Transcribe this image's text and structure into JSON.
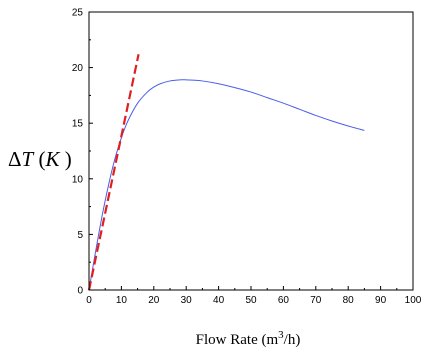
{
  "chart_data": {
    "type": "line",
    "title": "",
    "xlabel": {
      "prefix": "Flow Rate (m",
      "sup": "3",
      "suffix": "/h)"
    },
    "ylabel": {
      "delta": "Δ",
      "var": "T",
      "open": " (",
      "unit": "K",
      "close": " )"
    },
    "xlim": [
      0,
      100
    ],
    "ylim": [
      0,
      25
    ],
    "xticks": [
      0,
      10,
      20,
      30,
      40,
      50,
      60,
      70,
      80,
      90,
      100
    ],
    "yticks": [
      0,
      5,
      10,
      15,
      20,
      25
    ],
    "grid": false,
    "series": [
      {
        "style": "solid",
        "color": "#4a5ee8",
        "x": [
          0,
          2,
          4,
          6,
          8,
          10,
          12,
          15,
          18,
          20,
          22,
          25,
          28,
          30,
          32,
          35,
          40,
          45,
          50,
          55,
          60,
          65,
          70,
          75,
          80,
          85
        ],
        "y": [
          0,
          3.4,
          6.6,
          9.4,
          11.8,
          13.7,
          15.2,
          16.8,
          17.8,
          18.25,
          18.55,
          18.8,
          18.9,
          18.9,
          18.87,
          18.8,
          18.55,
          18.2,
          17.8,
          17.3,
          16.8,
          16.25,
          15.7,
          15.2,
          14.75,
          14.35
        ]
      },
      {
        "style": "dashed",
        "color": "#e02020",
        "x": [
          0,
          15.3
        ],
        "y": [
          0,
          21.2
        ]
      }
    ],
    "colors": {
      "axis": "#000000",
      "curve": "#4a5ee8",
      "dashed": "#e02020"
    }
  }
}
